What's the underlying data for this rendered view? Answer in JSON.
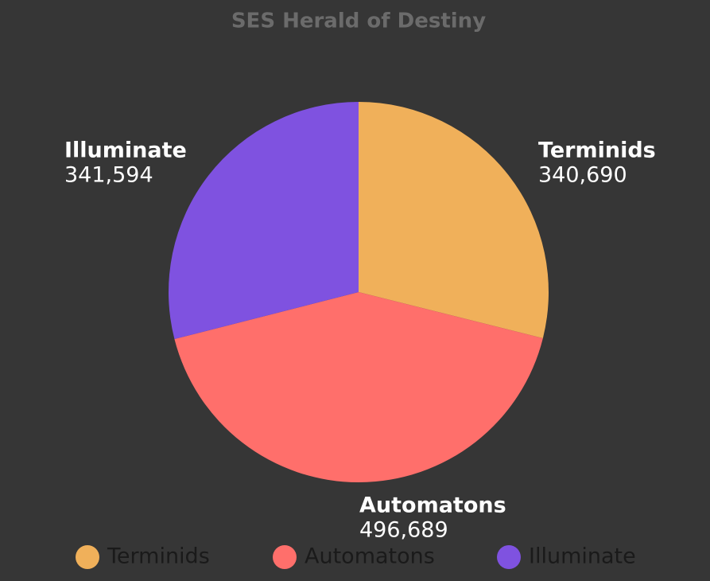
{
  "chart_data": {
    "type": "pie",
    "title": "SES Herald of Destiny",
    "categories": [
      "Terminids",
      "Automatons",
      "Illuminate"
    ],
    "values": [
      340690,
      496689,
      341594
    ],
    "value_labels": [
      "340,690",
      "496,689",
      "341,594"
    ],
    "colors": [
      "#f0b05a",
      "#ff6f6b",
      "#7f52e0"
    ],
    "legend": "bottom"
  }
}
